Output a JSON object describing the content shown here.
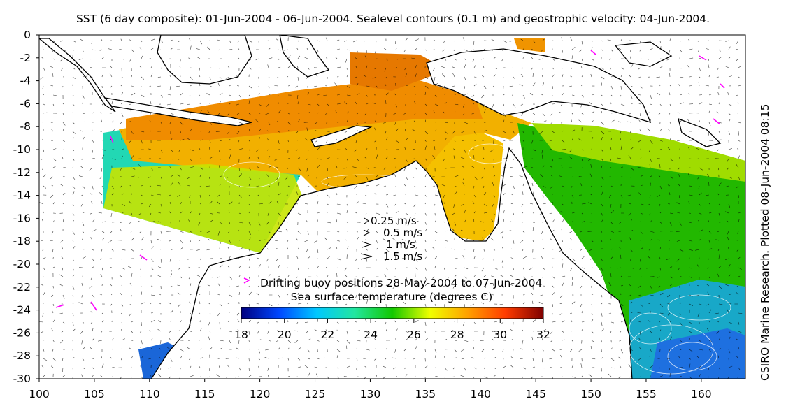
{
  "title": "SST (6 day composite): 01-Jun-2004 - 06-Jun-2004. Sealevel contours (0.1 m) and geostrophic velocity: 04-Jun-2004.",
  "credit": "CSIRO Marine Research. Plotted 08-Jun-2004 08:15",
  "map": {
    "lon_range": [
      100,
      164
    ],
    "lat_range": [
      -30,
      0
    ],
    "x_ticks": [
      100,
      105,
      110,
      115,
      120,
      125,
      130,
      135,
      140,
      145,
      150,
      155,
      160
    ],
    "y_ticks": [
      0,
      -2,
      -4,
      -6,
      -8,
      -10,
      -12,
      -14,
      -16,
      -18,
      -20,
      -22,
      -24,
      -26,
      -28,
      -30
    ],
    "colors": {
      "land": "#ffffff",
      "coast": "#000000",
      "contours": "#ffffff",
      "arrows": "#000000",
      "buoy": "#ff00ff"
    }
  },
  "velocity_legend": {
    "items": [
      {
        "label": "0.25 m/s",
        "speed": 0.25
      },
      {
        "label": "0.5 m/s",
        "speed": 0.5
      },
      {
        "label": "1 m/s",
        "speed": 1
      },
      {
        "label": "1.5 m/s",
        "speed": 1.5
      }
    ]
  },
  "buoy_legend": {
    "label": "Drifting buoy positions 28-May-2004 to 07-Jun-2004",
    "icon": "buoy-track-icon"
  },
  "colorbar": {
    "label": "Sea surface temperature (degrees C)",
    "min": 18,
    "max": 32,
    "ticks": [
      18,
      20,
      22,
      24,
      26,
      28,
      30,
      32
    ],
    "stops": [
      "#00007f",
      "#0047ff",
      "#00c8ff",
      "#22e6a0",
      "#12c800",
      "#f0ff00",
      "#ffa000",
      "#ff3c00",
      "#7f0000"
    ]
  }
}
